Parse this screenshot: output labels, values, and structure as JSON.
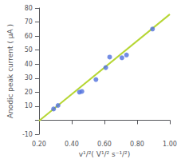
{
  "chart_data": {
    "type": "scatter",
    "xlabel": "v¹/²( V¹/² s⁻¹/²)",
    "ylabel": "Anodic peak current ( μA )",
    "series": [
      {
        "type": "scatter",
        "marker": "circle",
        "x": [
          0.289,
          0.316,
          0.447,
          0.462,
          0.548,
          0.608,
          0.632,
          0.707,
          0.735,
          0.894
        ],
        "values": [
          8.0,
          10.5,
          20.0,
          20.5,
          29.0,
          37.5,
          45.0,
          44.5,
          46.5,
          65.0
        ]
      },
      {
        "type": "line",
        "line_style": "solid",
        "x": [
          0.2,
          1.0
        ],
        "values": [
          -0.5,
          75.5
        ]
      }
    ],
    "xlim": [
      0.2,
      1.0
    ],
    "ylim": [
      -10,
      80
    ],
    "xticks": [
      {
        "value": 0.2,
        "label": "0.20"
      },
      {
        "value": 0.4,
        "label": "0.40"
      },
      {
        "value": 0.6,
        "label": "0.60"
      },
      {
        "value": 0.8,
        "label": "0.80"
      },
      {
        "value": 1.0,
        "label": "1.00"
      }
    ],
    "yticks": [
      -10,
      {
        "value": 0,
        "label": ""
      },
      10,
      20,
      30,
      40,
      50,
      60,
      70,
      80
    ],
    "grid": false
  }
}
